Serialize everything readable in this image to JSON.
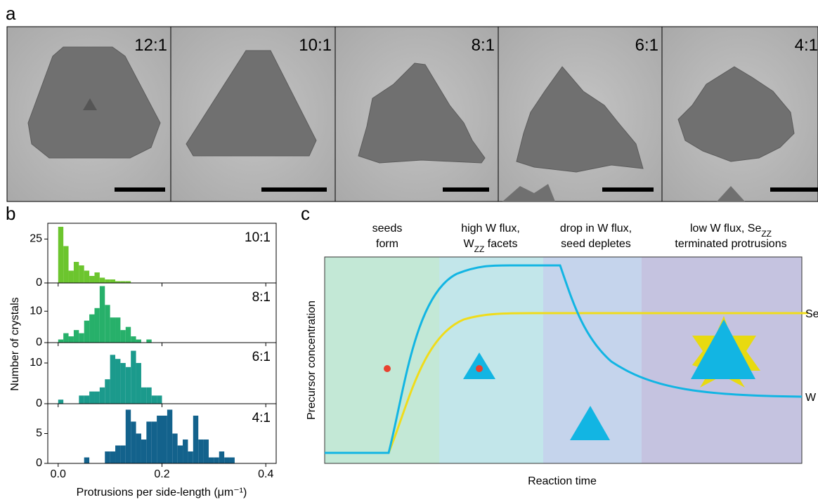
{
  "panel_labels": {
    "a": "a",
    "b": "b",
    "c": "c"
  },
  "images": [
    {
      "label": "12:1"
    },
    {
      "label": "10:1"
    },
    {
      "label": "8:1"
    },
    {
      "label": "6:1"
    },
    {
      "label": "4:1"
    }
  ],
  "shared_axes": {
    "ylabel": "Number of crystals",
    "xlabel": "Protrusions per side-length (μm⁻¹)"
  },
  "chart_data": [
    {
      "type": "histogram",
      "title": "10:1",
      "color": "#6cc52e",
      "bins": [
        0,
        0.01,
        0.02,
        0.03,
        0.04,
        0.05,
        0.06,
        0.07,
        0.08,
        0.09,
        0.1,
        0.11,
        0.12,
        0.13,
        0.14
      ],
      "values": [
        32,
        21,
        7,
        12,
        10,
        7,
        4,
        6,
        3,
        2,
        2,
        1,
        1,
        1
      ],
      "xlim": [
        -0.02,
        0.42
      ],
      "ylim": [
        0,
        34
      ],
      "yticks": [
        0,
        25
      ]
    },
    {
      "type": "histogram",
      "title": "8:1",
      "color": "#27b06a",
      "bins": [
        0,
        0.01,
        0.02,
        0.03,
        0.04,
        0.05,
        0.06,
        0.07,
        0.08,
        0.09,
        0.1,
        0.11,
        0.12,
        0.13,
        0.14,
        0.15,
        0.16,
        0.17,
        0.18
      ],
      "values": [
        1,
        3,
        2,
        4,
        3,
        7,
        9,
        11,
        18,
        12,
        8,
        8,
        4,
        5,
        2,
        1,
        0,
        1
      ],
      "xlim": [
        -0.02,
        0.42
      ],
      "ylim": [
        0,
        19
      ],
      "yticks": [
        0,
        10
      ]
    },
    {
      "type": "histogram",
      "title": "6:1",
      "color": "#1b9a8c",
      "bins": [
        0,
        0.01,
        0.02,
        0.03,
        0.04,
        0.05,
        0.06,
        0.07,
        0.08,
        0.09,
        0.1,
        0.11,
        0.12,
        0.13,
        0.14,
        0.15,
        0.16,
        0.17,
        0.18,
        0.19,
        0.2
      ],
      "values": [
        1,
        0,
        0,
        0,
        2,
        2,
        3,
        3,
        4,
        6,
        12,
        11,
        10,
        9,
        13,
        10,
        4,
        4,
        2,
        2
      ],
      "xlim": [
        -0.02,
        0.42
      ],
      "ylim": [
        0,
        15
      ],
      "yticks": [
        0,
        10
      ]
    },
    {
      "type": "histogram",
      "title": "4:1",
      "color": "#13628c",
      "bins": [
        0.05,
        0.06,
        0.07,
        0.08,
        0.09,
        0.1,
        0.11,
        0.12,
        0.13,
        0.14,
        0.15,
        0.16,
        0.17,
        0.18,
        0.19,
        0.2,
        0.21,
        0.22,
        0.23,
        0.24,
        0.25,
        0.26,
        0.27,
        0.28,
        0.29,
        0.3,
        0.31,
        0.32,
        0.33,
        0.34
      ],
      "values": [
        1,
        0,
        0,
        0,
        2,
        2,
        3,
        3,
        9,
        7,
        5,
        4,
        7,
        7,
        8,
        8,
        9,
        5,
        3,
        4,
        2,
        8,
        4,
        4,
        1,
        1,
        2,
        1,
        1
      ],
      "xlim": [
        -0.02,
        0.42
      ],
      "ylim": [
        0,
        10
      ],
      "yticks": [
        0,
        5
      ],
      "xticks": [
        {
          "value": 0,
          "label": "0.0"
        },
        0.2,
        0.4
      ]
    }
  ],
  "schematic": {
    "headers": [
      {
        "lines": [
          [
            {
              "text": "seeds"
            }
          ],
          [
            {
              "text": "form"
            }
          ]
        ]
      },
      {
        "lines": [
          [
            {
              "text": "high W flux,"
            }
          ],
          [
            {
              "text": "W"
            },
            {
              "text": "ZZ",
              "sub": true
            },
            {
              "text": " facets"
            }
          ]
        ]
      },
      {
        "lines": [
          [
            {
              "text": "drop in W flux,"
            }
          ],
          [
            {
              "text": "seed depletes"
            }
          ]
        ]
      },
      {
        "lines": [
          [
            {
              "text": "low W flux, Se"
            },
            {
              "text": "ZZ",
              "sub": true
            }
          ],
          [
            {
              "text": "terminated protrusions"
            }
          ]
        ]
      }
    ],
    "ylabel": "Precursor concentration",
    "xlabel": "Reaction time",
    "curve_labels": {
      "se": "Se",
      "w": "W"
    }
  }
}
